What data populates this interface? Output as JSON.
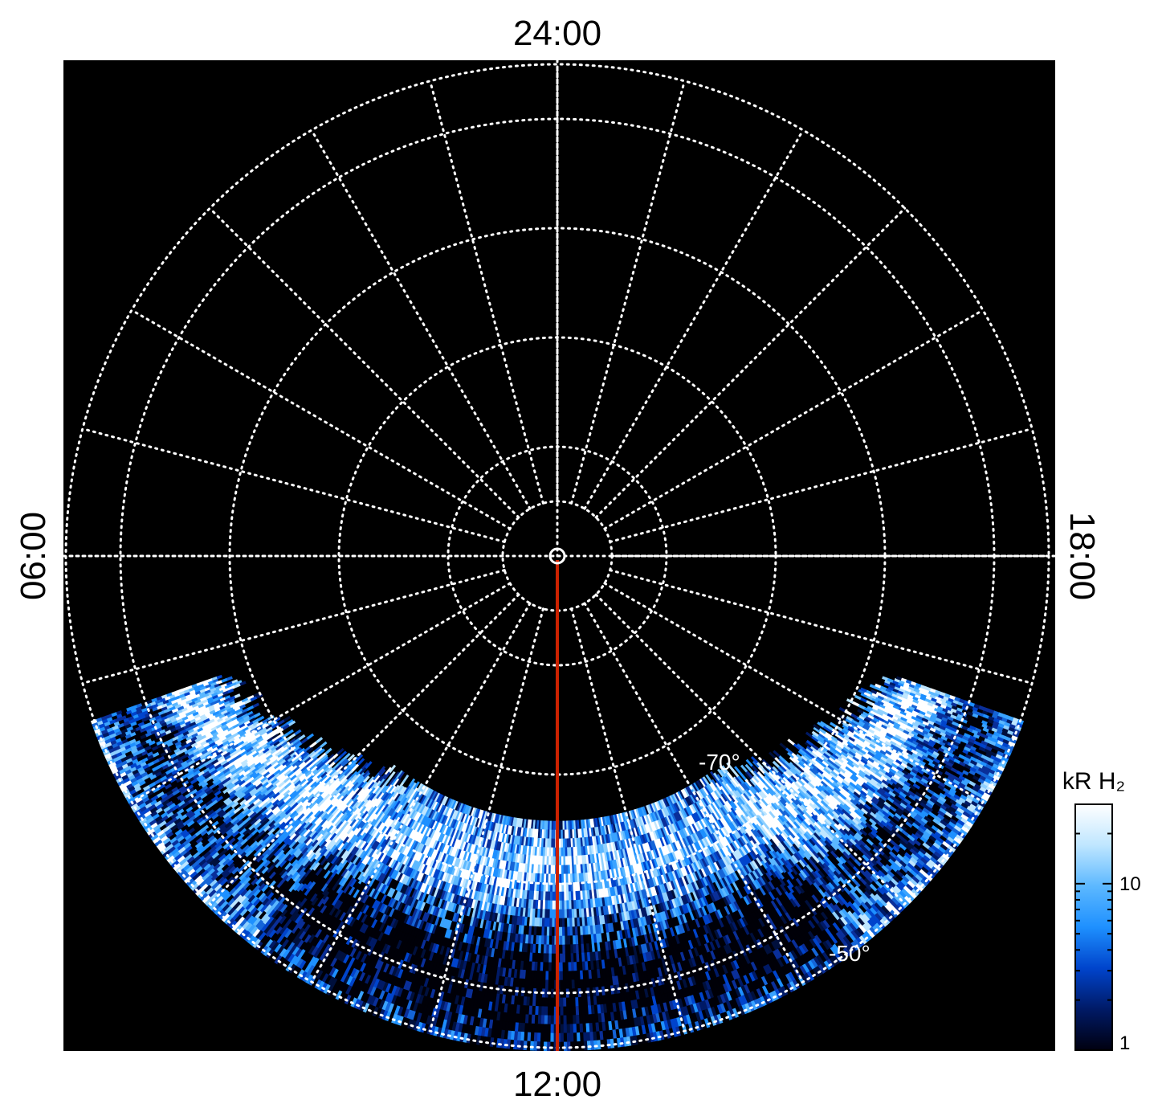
{
  "chart_data": {
    "type": "heatmap",
    "projection": "polar",
    "background": "#000000",
    "grid": true,
    "grid_color": "#ffffff",
    "local_time_labels": {
      "top": "24:00",
      "bottom": "12:00",
      "left": "06:00",
      "right": "18:00"
    },
    "latitude_labels": [
      "-70°",
      "-50°"
    ],
    "latitude_circles": [
      -85,
      -80,
      -70,
      -60,
      -50,
      -45
    ],
    "meridian_count": 24,
    "noon_meridian_color": "#cc2200",
    "colorbar": {
      "title": "kR H₂",
      "scale": "log",
      "range": [
        1,
        30
      ],
      "tick_labels": [
        "10",
        "1"
      ],
      "colors": [
        "#000010",
        "#001a66",
        "#0044cc",
        "#1e90ff",
        "#5cb8ff",
        "#bfe6ff",
        "#ffffff"
      ]
    },
    "emission": {
      "description": "",
      "lat_range_deg": [
        -45,
        -74
      ],
      "lt_range_hours": [
        7.3,
        16.7
      ]
    }
  }
}
